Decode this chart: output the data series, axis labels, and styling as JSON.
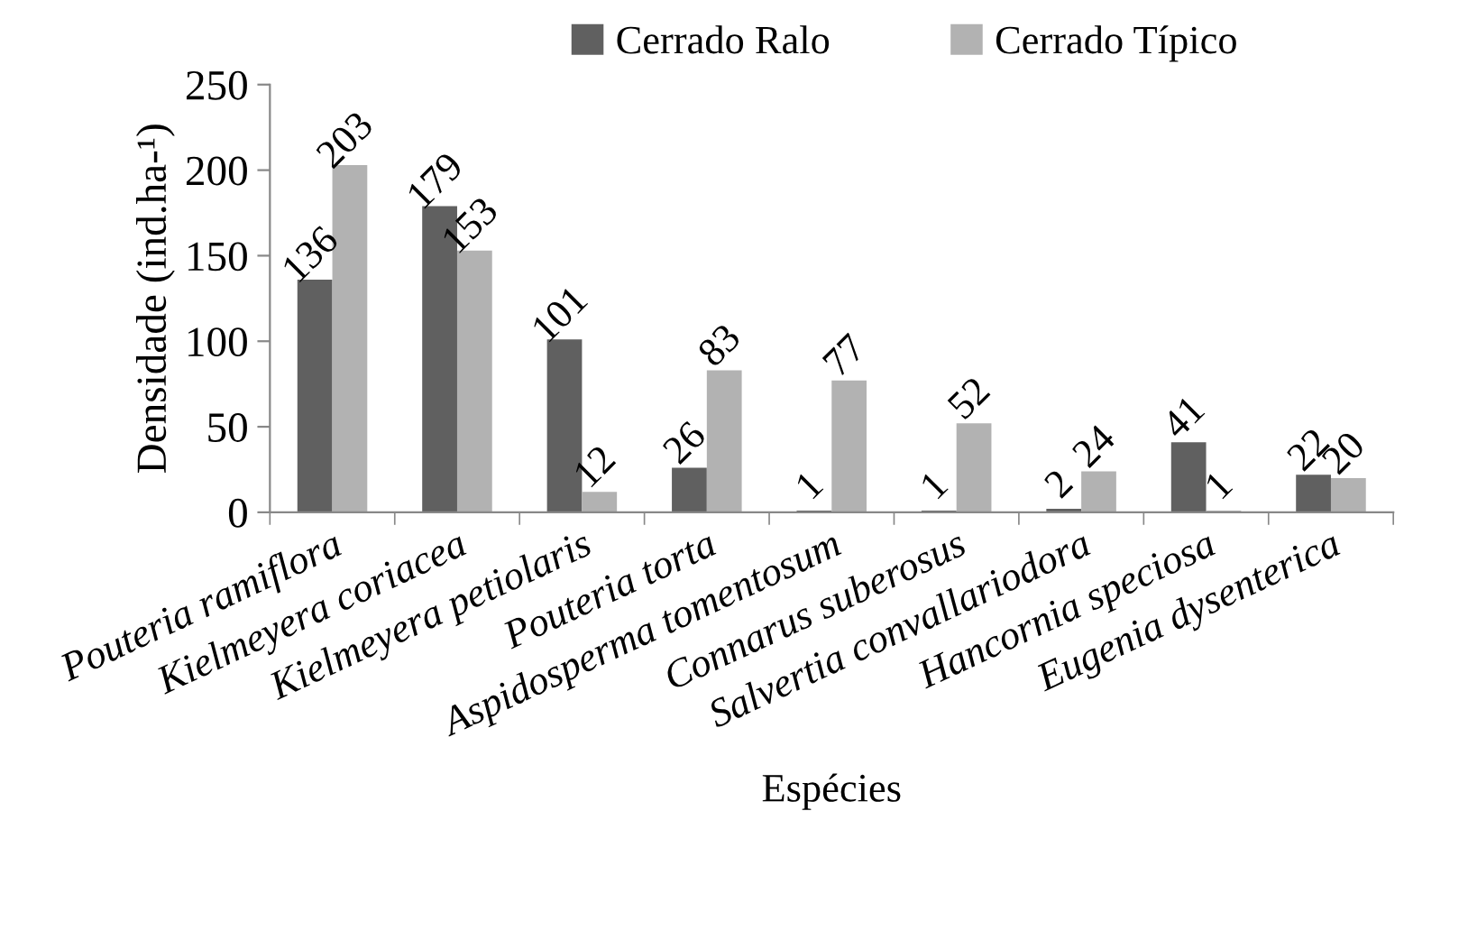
{
  "chart_data": {
    "type": "bar",
    "xlabel": "Espécies",
    "ylabel": "Densidade (ind.ha-¹)",
    "categories": [
      "Pouteria ramiflora",
      "Kielmeyera coriacea",
      "Kielmeyera petiolaris",
      "Pouteria torta",
      "Aspidosperma tomentosum",
      "Connarus suberosus",
      "Salvertia convallariodora",
      "Hancornia speciosa",
      "Eugenia dysenterica"
    ],
    "series": [
      {
        "name": "Cerrado Ralo",
        "color": "#606060",
        "values": [
          136,
          179,
          101,
          26,
          1,
          1,
          2,
          41,
          22
        ]
      },
      {
        "name": "Cerrado Típico",
        "color": "#b2b2b2",
        "values": [
          203,
          153,
          12,
          83,
          77,
          52,
          24,
          1,
          20
        ]
      }
    ],
    "ylim": [
      0,
      250
    ],
    "yticks": [
      0,
      50,
      100,
      150,
      200,
      250
    ],
    "data_labels": true,
    "legend": "top",
    "grid": false
  }
}
